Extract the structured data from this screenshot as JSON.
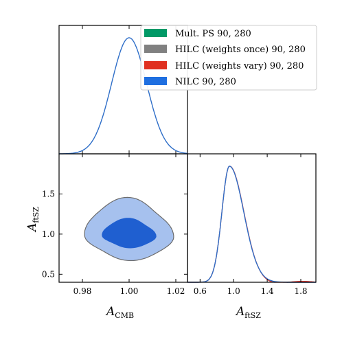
{
  "chart_data": {
    "type": "corner",
    "parameters": [
      {
        "symbol": "A",
        "subscript": "CMB"
      },
      {
        "symbol": "A",
        "subscript": "ftSZ"
      }
    ],
    "legend": {
      "placement": "top-right",
      "entries": [
        {
          "label": "Mult. PS 90, 280",
          "color": "#009966"
        },
        {
          "label": "HILC (weights once) 90, 280",
          "color": "#808080"
        },
        {
          "label": "HILC (weights vary) 90, 280",
          "color": "#e03020"
        },
        {
          "label": "NILC 90, 280",
          "color": "#1f6fe0"
        }
      ]
    },
    "series_color": "#2e6ec8",
    "panels": {
      "acmb_1d": {
        "xlim": [
          0.97,
          1.025
        ],
        "mean": 1.0,
        "sigma": 0.0075,
        "show_tick_labels": false
      },
      "joint_2d": {
        "xlim": [
          0.97,
          1.025
        ],
        "ylim": [
          0.4,
          2.0
        ],
        "xticks": [
          "0.98",
          "1.00",
          "1.02"
        ],
        "yticks": [
          "0.5",
          "1.0",
          "1.5"
        ],
        "center": [
          1.0,
          0.98
        ],
        "contour_68": {
          "sx": 0.011,
          "sy": 0.21,
          "fill": "#1f5fd0"
        },
        "contour_95": {
          "sx": 0.018,
          "sy": 0.45,
          "fill": "#a6c1ee",
          "edge": "#6c6c6c"
        }
      },
      "aftsz_1d": {
        "xlim": [
          0.45,
          1.98
        ],
        "xticks": [
          "0.6",
          "1.0",
          "1.4",
          "1.8"
        ],
        "peak": 0.95,
        "sigma_left": 0.09,
        "sigma_right": 0.17,
        "tail_color": "#e03020"
      }
    }
  }
}
